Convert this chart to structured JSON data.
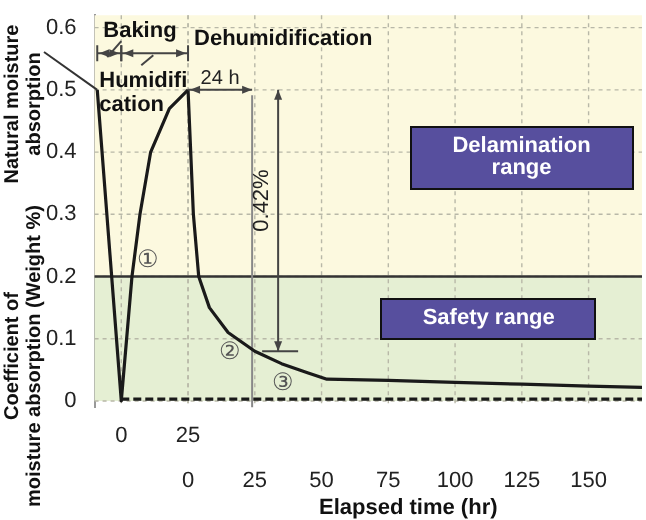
{
  "chart_data": {
    "type": "line",
    "xlabel": "Elapsed time (hr)",
    "ylabel": "Coefficient of moisture absorption (Weight %)",
    "xlim": [
      -35,
      170
    ],
    "xticks": [
      0,
      25,
      50,
      75,
      100,
      125,
      150
    ],
    "x2lim": [
      -10,
      195
    ],
    "x2ticks": [
      0,
      25
    ],
    "ylim": [
      -0.01,
      0.62
    ],
    "yticks": [
      0,
      0.1,
      0.2,
      0.3,
      0.4,
      0.5,
      0.6
    ],
    "grid": true,
    "legend": false,
    "marker": "none",
    "series": [
      {
        "color": "#1a1a1a",
        "axis": "x2",
        "line_style": "solid",
        "x": [
          -9,
          0,
          2,
          4,
          7,
          11,
          18,
          25
        ],
        "values": [
          0.5,
          0,
          0.1,
          0.2,
          0.3,
          0.4,
          0.47,
          0.5
        ]
      },
      {
        "color": "#1a1a1a",
        "line_style": "solid",
        "x": [
          0,
          2,
          4,
          8,
          15,
          25,
          35,
          45,
          52,
          75,
          100,
          125,
          150,
          170
        ],
        "values": [
          0.5,
          0.3,
          0.2,
          0.15,
          0.11,
          0.08,
          0.06,
          0.045,
          0.035,
          0.033,
          0.03,
          0.027,
          0.024,
          0.022
        ]
      },
      {
        "color": "#1a1a1a",
        "axis": "x2",
        "line_style": "dashed",
        "x": [
          0,
          50,
          100,
          150,
          195
        ],
        "values": [
          0.003,
          0.003,
          0.003,
          0.003,
          0.003
        ]
      }
    ],
    "bands": [
      {
        "axis": "y",
        "from": 0.2,
        "to": 0.62,
        "label": "Delamination range",
        "color": "#fcf9df"
      },
      {
        "axis": "y",
        "from": 0,
        "to": 0.2,
        "label": "Safety range",
        "color": "#e5efd3"
      }
    ],
    "ref_lines": [
      {
        "axis": "y",
        "value": 0.2,
        "color": "#333333"
      },
      {
        "axis": "x",
        "value": 24,
        "color": "#888888"
      }
    ],
    "annotations": [
      "Baking",
      "Humidification",
      "Dehumidification",
      {
        "text": "24 h",
        "x": 24,
        "y": 0.5
      },
      "0.42%",
      "①",
      "②",
      "③",
      {
        "text": "Natural moisture absorption",
        "x": -34,
        "y": 0.5
      }
    ]
  }
}
